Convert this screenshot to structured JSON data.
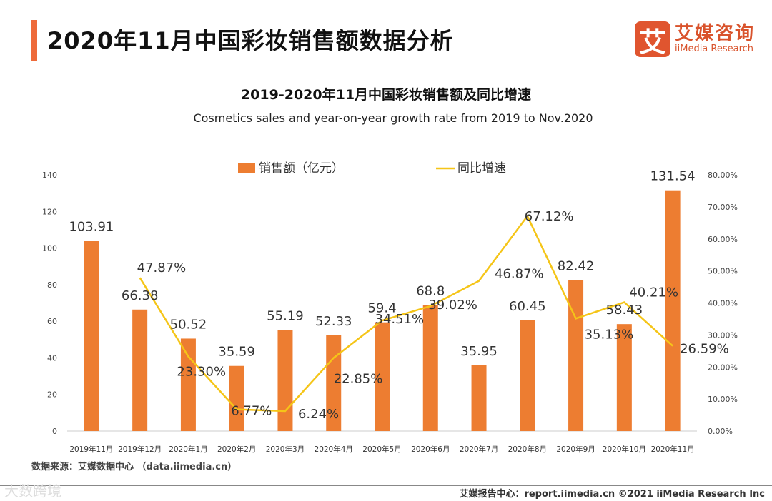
{
  "header": {
    "title": "2020年11月中国彩妆销售额数据分析",
    "logo_mark": "艾",
    "logo_cn": "艾媒咨询",
    "logo_en": "iiMedia Research"
  },
  "source": "数据来源：艾媒数据中心 （data.iimedia.cn）",
  "footer": "艾媒报告中心：report.iimedia.cn   ©2021  iiMedia Research  Inc",
  "watermark": "大数跨境",
  "colors": {
    "bar": "#ed7d31",
    "line": "#f5c518"
  },
  "chart_data": {
    "type": "bar+line",
    "title": "2019-2020年11月中国彩妆销售额及同比增速",
    "subtitle": "Cosmetics sales and year-on-year growth rate from 2019 to Nov.2020",
    "categories": [
      "2019年11月",
      "2019年12月",
      "2020年1月",
      "2020年2月",
      "2020年3月",
      "2020年4月",
      "2020年5月",
      "2020年6月",
      "2020年7月",
      "2020年8月",
      "2020年9月",
      "2020年10月",
      "2020年11月"
    ],
    "series": [
      {
        "name": "销售额（亿元）",
        "type": "bar",
        "axis": "left",
        "values": [
          103.91,
          66.38,
          50.52,
          35.59,
          55.19,
          52.33,
          59.4,
          68.8,
          35.95,
          60.45,
          82.42,
          58.43,
          131.54
        ],
        "labels": [
          "103.91",
          "66.38",
          "50.52",
          "35.59",
          "55.19",
          "52.33",
          "59.4",
          "68.8",
          "35.95",
          "60.45",
          "82.42",
          "58.43",
          "131.54"
        ]
      },
      {
        "name": "同比增速",
        "type": "line",
        "axis": "right",
        "values": [
          null,
          47.87,
          23.3,
          6.77,
          6.24,
          22.85,
          34.51,
          39.02,
          46.87,
          67.12,
          35.13,
          40.21,
          26.59
        ],
        "labels": [
          "",
          "47.87%",
          "23.30%",
          "6.77%",
          "6.24%",
          "22.85%",
          "34.51%",
          "39.02%",
          "46.87%",
          "67.12%",
          "35.13%",
          "40.21%",
          "26.59%"
        ]
      }
    ],
    "ylim_left": [
      0,
      140
    ],
    "yticks_left": [
      "0",
      "20",
      "40",
      "60",
      "80",
      "100",
      "120",
      "140"
    ],
    "ylim_right": [
      0,
      80
    ],
    "yticks_right": [
      "0.00%",
      "10.00%",
      "20.00%",
      "30.00%",
      "40.00%",
      "50.00%",
      "60.00%",
      "70.00%",
      "80.00%"
    ],
    "legend_position": "top-center"
  }
}
